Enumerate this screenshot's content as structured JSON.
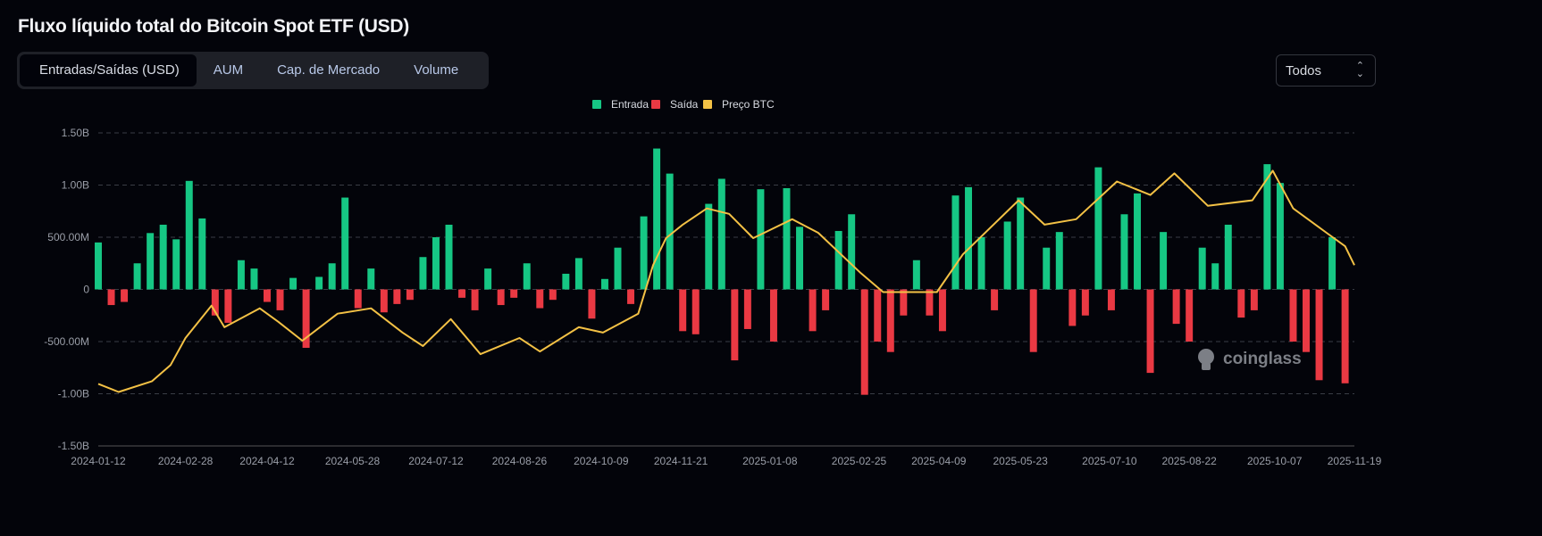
{
  "header": {
    "title": "Fluxo líquido total do Bitcoin Spot ETF (USD)"
  },
  "tabs": [
    {
      "label": "Entradas/Saídas (USD)",
      "active": true
    },
    {
      "label": "AUM",
      "active": false
    },
    {
      "label": "Cap. de Mercado",
      "active": false
    },
    {
      "label": "Volume",
      "active": false
    }
  ],
  "range_select": {
    "value": "Todos",
    "icon": "chevron-up-down-icon"
  },
  "watermark": "coinglass",
  "colors": {
    "inflow": "#16c784",
    "outflow": "#ea3943",
    "price": "#f3c145",
    "grid": "#3a3d45",
    "axis_text": "#9a9ea8"
  },
  "chart_data": {
    "type": "bar",
    "legend": [
      "Entrada",
      "Saída",
      "Preço BTC"
    ],
    "legend_placement": "top-center",
    "grid": true,
    "ylim": [
      -1500000000,
      1500000000
    ],
    "y_ticks": [
      "1.50B",
      "1.00B",
      "500.00M",
      "0",
      "-500.00M",
      "-1.00B",
      "-1.50B"
    ],
    "y_tick_values": [
      1500,
      1000,
      500,
      0,
      -500,
      -1000,
      -1500
    ],
    "x_ticks": [
      "2024-01-12",
      "2024-02-28",
      "2024-04-12",
      "2024-05-28",
      "2024-07-12",
      "2024-08-26",
      "2024-10-09",
      "2024-11-21",
      "2025-01-08",
      "2025-02-25",
      "2025-04-09",
      "2025-05-23",
      "2025-07-10",
      "2025-08-22",
      "2025-10-07",
      "2025-11-19"
    ],
    "flow_unit": "M USD",
    "flow_dates": [
      "2024-01-12",
      "2024-01-19",
      "2024-01-26",
      "2024-02-02",
      "2024-02-09",
      "2024-02-16",
      "2024-02-23",
      "2024-03-01",
      "2024-03-08",
      "2024-03-15",
      "2024-03-22",
      "2024-03-29",
      "2024-04-05",
      "2024-04-12",
      "2024-04-19",
      "2024-04-26",
      "2024-05-03",
      "2024-05-10",
      "2024-05-17",
      "2024-05-24",
      "2024-05-31",
      "2024-06-07",
      "2024-06-14",
      "2024-06-21",
      "2024-06-28",
      "2024-07-05",
      "2024-07-12",
      "2024-07-19",
      "2024-07-26",
      "2024-08-02",
      "2024-08-09",
      "2024-08-16",
      "2024-08-23",
      "2024-08-30",
      "2024-09-06",
      "2024-09-13",
      "2024-09-20",
      "2024-09-27",
      "2024-10-04",
      "2024-10-11",
      "2024-10-18",
      "2024-10-25",
      "2024-11-01",
      "2024-11-08",
      "2024-11-15",
      "2024-11-22",
      "2024-11-29",
      "2024-12-06",
      "2024-12-13",
      "2024-12-20",
      "2024-12-27",
      "2025-01-03",
      "2025-01-10",
      "2025-01-17",
      "2025-01-24",
      "2025-01-31",
      "2025-02-07",
      "2025-02-14",
      "2025-02-21",
      "2025-02-28",
      "2025-03-07",
      "2025-03-14",
      "2025-03-21",
      "2025-03-28",
      "2025-04-04",
      "2025-04-11",
      "2025-04-18",
      "2025-04-25",
      "2025-05-02",
      "2025-05-09",
      "2025-05-16",
      "2025-05-23",
      "2025-05-30",
      "2025-06-06",
      "2025-06-13",
      "2025-06-20",
      "2025-06-27",
      "2025-07-04",
      "2025-07-11",
      "2025-07-18",
      "2025-07-25",
      "2025-08-01",
      "2025-08-08",
      "2025-08-15",
      "2025-08-22",
      "2025-08-29",
      "2025-09-05",
      "2025-09-12",
      "2025-09-19",
      "2025-09-26",
      "2025-10-03",
      "2025-10-10",
      "2025-10-17",
      "2025-10-24",
      "2025-10-31",
      "2025-11-07",
      "2025-11-14"
    ],
    "flow_values": [
      450,
      -150,
      -120,
      250,
      540,
      620,
      480,
      1040,
      680,
      -250,
      -320,
      280,
      200,
      -120,
      -200,
      110,
      -560,
      120,
      250,
      880,
      -180,
      200,
      -220,
      -140,
      -100,
      310,
      500,
      620,
      -80,
      -200,
      200,
      -150,
      -80,
      250,
      -180,
      -100,
      150,
      300,
      -280,
      100,
      400,
      -140,
      700,
      1350,
      1110,
      -400,
      -430,
      820,
      1060,
      -680,
      -380,
      960,
      -500,
      970,
      600,
      -400,
      -200,
      560,
      720,
      -1010,
      -500,
      -600,
      -250,
      280,
      -250,
      -400,
      900,
      980,
      500,
      -200,
      650,
      880,
      -600,
      400,
      550,
      -350,
      -250,
      1170,
      -200,
      720,
      920,
      -800,
      550,
      -330,
      -500,
      400,
      250,
      620,
      -270,
      -200,
      1200,
      1020,
      -500,
      -600,
      -870,
      500,
      -900
    ],
    "price_range": [
      23000,
      139000
    ],
    "price_dates": [
      "2024-01-12",
      "2024-01-23",
      "2024-02-10",
      "2024-02-20",
      "2024-02-28",
      "2024-03-13",
      "2024-03-20",
      "2024-04-08",
      "2024-04-18",
      "2024-05-01",
      "2024-05-20",
      "2024-06-07",
      "2024-06-24",
      "2024-07-05",
      "2024-07-20",
      "2024-08-05",
      "2024-08-26",
      "2024-09-06",
      "2024-09-27",
      "2024-10-10",
      "2024-10-29",
      "2024-11-06",
      "2024-11-13",
      "2024-11-22",
      "2024-12-05",
      "2024-12-17",
      "2024-12-30",
      "2025-01-20",
      "2025-02-03",
      "2025-02-26",
      "2025-03-10",
      "2025-04-08",
      "2025-04-22",
      "2025-05-22",
      "2025-06-05",
      "2025-06-22",
      "2025-07-14",
      "2025-08-01",
      "2025-08-14",
      "2025-09-01",
      "2025-09-25",
      "2025-10-06",
      "2025-10-17",
      "2025-11-04",
      "2025-11-14",
      "2025-11-19"
    ],
    "price_values": [
      46000,
      43000,
      47000,
      53000,
      63000,
      75000,
      67000,
      74000,
      69000,
      62000,
      72000,
      74000,
      65000,
      60000,
      70000,
      57000,
      63000,
      58000,
      67000,
      65000,
      72000,
      90000,
      100000,
      105000,
      111000,
      109000,
      100000,
      107000,
      102000,
      87000,
      80000,
      80000,
      94000,
      114000,
      105000,
      107000,
      121000,
      116000,
      124000,
      112000,
      114000,
      125000,
      111000,
      102000,
      97000,
      90000
    ]
  }
}
